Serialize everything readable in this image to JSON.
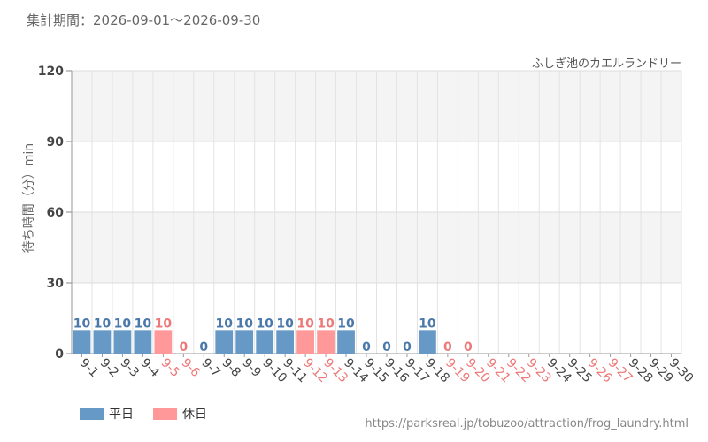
{
  "header": {
    "period": "集計期間：2026-09-01～2026-09-30",
    "attraction": "ふしぎ池のカエルランドリー",
    "source": "https://parksreal.jp/tobuzoo/attraction/frog_laundry.html"
  },
  "colors": {
    "weekday": "#6699c5",
    "holiday": "#ff9999",
    "weekday_text": "#4a78aa",
    "holiday_text": "#ee7777"
  },
  "chart_data": {
    "type": "bar",
    "ylabel": "待ち時間（分）min",
    "ylim": [
      0,
      120
    ],
    "yticks": [
      0,
      30,
      60,
      90,
      120
    ],
    "grid": true,
    "legend_position": "bottom-left",
    "legend": [
      {
        "key": "weekday",
        "label": "平日"
      },
      {
        "key": "holiday",
        "label": "休日"
      }
    ],
    "categories": [
      "9-1",
      "9-2",
      "9-3",
      "9-4",
      "9-5",
      "9-6",
      "9-7",
      "9-8",
      "9-9",
      "9-10",
      "9-11",
      "9-12",
      "9-13",
      "9-14",
      "9-15",
      "9-16",
      "9-17",
      "9-18",
      "9-19",
      "9-20",
      "9-21",
      "9-22",
      "9-23",
      "9-24",
      "9-25",
      "9-26",
      "9-27",
      "9-28",
      "9-29",
      "9-30"
    ],
    "values": [
      10,
      10,
      10,
      10,
      10,
      0,
      0,
      10,
      10,
      10,
      10,
      10,
      10,
      10,
      0,
      0,
      0,
      10,
      0,
      0,
      null,
      null,
      null,
      null,
      null,
      null,
      null,
      null,
      null,
      null
    ],
    "day_type": [
      "weekday",
      "weekday",
      "weekday",
      "weekday",
      "holiday",
      "holiday",
      "weekday",
      "weekday",
      "weekday",
      "weekday",
      "weekday",
      "holiday",
      "holiday",
      "weekday",
      "weekday",
      "weekday",
      "weekday",
      "weekday",
      "holiday",
      "holiday",
      "holiday",
      "holiday",
      "holiday",
      "weekday",
      "weekday",
      "holiday",
      "holiday",
      "weekday",
      "weekday",
      "weekday"
    ]
  }
}
